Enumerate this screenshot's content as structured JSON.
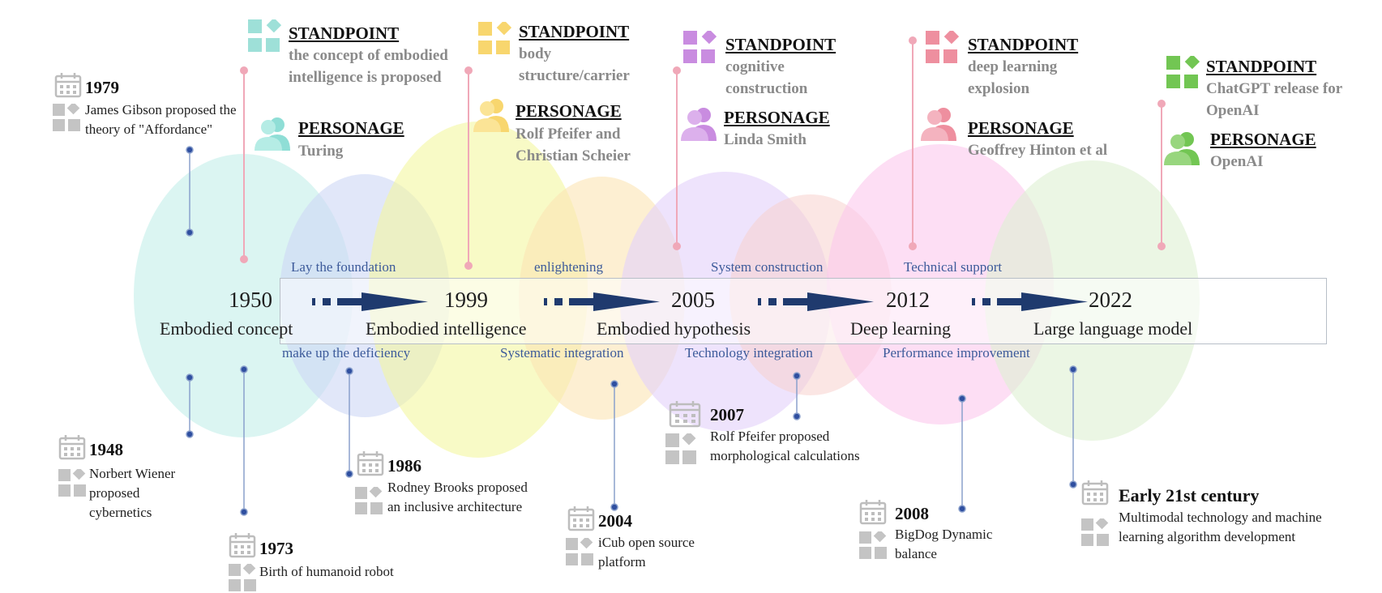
{
  "timeline": [
    {
      "year": "1950",
      "label": "Embodied concept"
    },
    {
      "year": "1999",
      "label": "Embodied intelligence"
    },
    {
      "year": "2005",
      "label": "Embodied hypothesis"
    },
    {
      "year": "2012",
      "label": "Deep learning"
    },
    {
      "year": "2022",
      "label": "Large language model"
    }
  ],
  "phases_top": [
    "Lay the foundation",
    "enlightening",
    "System construction",
    "Technical support"
  ],
  "phases_bottom": [
    "make up the deficiency",
    "Systematic integration",
    "Technology integration",
    "Performance improvement"
  ],
  "standpoints": [
    {
      "title": "STANDPOINT",
      "text": "the concept of embodied intelligence is proposed",
      "persona_title": "PERSONAGE",
      "persona": "Turing",
      "color": "#8fded6"
    },
    {
      "title": "STANDPOINT",
      "text": "body structure/carrier",
      "persona_title": "PERSONAGE",
      "persona": "Rolf Pfeifer and Christian Scheier",
      "color": "#f8d66e"
    },
    {
      "title": "STANDPOINT",
      "text": "cognitive construction",
      "persona_title": "PERSONAGE",
      "persona": "Linda Smith",
      "color": "#c98ce0"
    },
    {
      "title": "STANDPOINT",
      "text": "deep learning explosion",
      "persona_title": "PERSONAGE",
      "persona": "Geoffrey Hinton et al",
      "color": "#ee8f9f"
    },
    {
      "title": "STANDPOINT",
      "text": "ChatGPT release for OpenAI",
      "persona_title": "PERSONAGE",
      "persona": "OpenAI",
      "color": "#72c653"
    }
  ],
  "events": [
    {
      "year": "1979",
      "text": "James Gibson proposed the theory of \"Affordance\""
    },
    {
      "year": "1948",
      "text": "Norbert Wiener proposed cybernetics"
    },
    {
      "year": "1973",
      "text": "Birth of humanoid robot"
    },
    {
      "year": "1986",
      "text": "Rodney Brooks proposed an inclusive architecture"
    },
    {
      "year": "2004",
      "text": "iCub open source platform"
    },
    {
      "year": "2007",
      "text": "Rolf Pfeifer proposed morphological calculations"
    },
    {
      "year": "2008",
      "text": "BigDog Dynamic balance"
    },
    {
      "year": "Early 21st century",
      "text": "Multimodal technology and machine learning algorithm development"
    }
  ],
  "colors": {
    "arrow": "#1f3a6e",
    "dot": "#2f4fa0",
    "pink_line": "#f0a8b8",
    "icon_gray": "#c4c4c4",
    "blob_teal": "#d8f4f0",
    "blob_blue": "#dde4f7",
    "blob_yellow": "#f6f8b8",
    "blob_orange": "#fbe8c0",
    "blob_purple": "#ead8fa",
    "blob_pink": "#fbd0ec",
    "blob_salmon": "#f8dcd8",
    "blob_green": "#e2f2d6"
  },
  "icons": [
    "calendar-icon",
    "grid-icon",
    "person-icon"
  ]
}
